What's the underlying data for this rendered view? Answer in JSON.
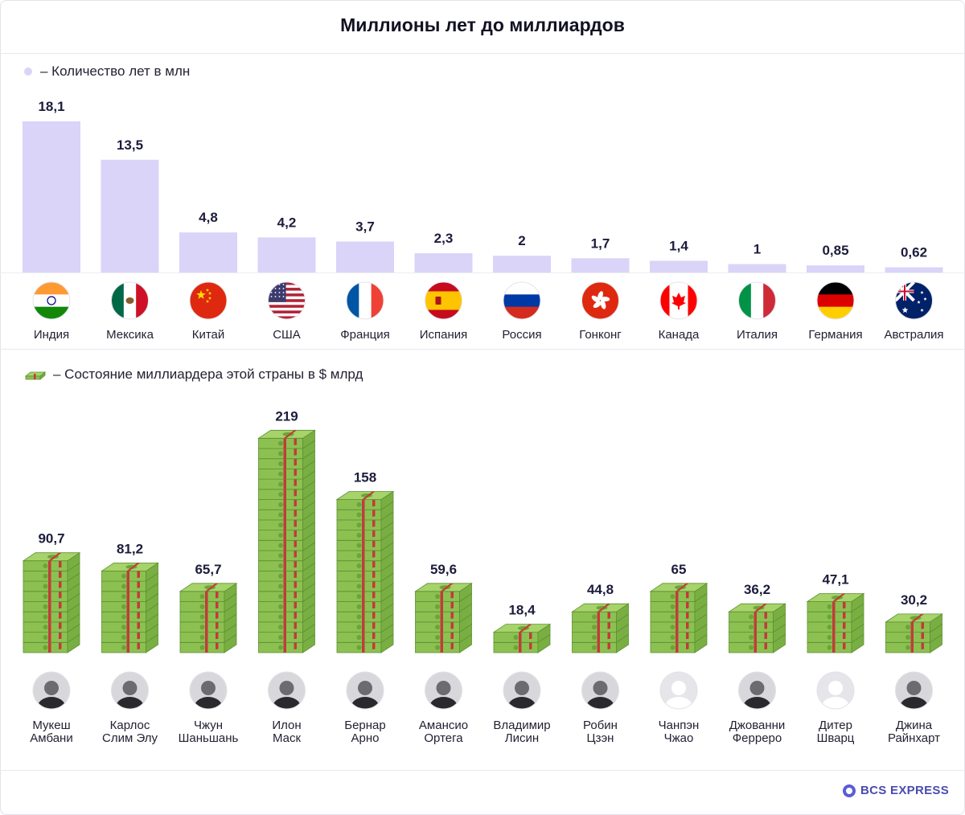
{
  "title": "Миллионы лет до миллиардов",
  "legend_years": "– Количество лет в млн",
  "legend_wealth": "– Состояние миллиардера этой страны в $ млрд",
  "footer_brand": "BCS EXPRESS",
  "colors": {
    "bar": "#d9d4f8",
    "money": "#8cc152",
    "money_dark": "#5d8f33",
    "band": "#c23b3b"
  },
  "chart_data": [
    {
      "type": "bar",
      "title": "Количество лет в млн",
      "categories": [
        "Индия",
        "Мексика",
        "Китай",
        "США",
        "Франция",
        "Испания",
        "Россия",
        "Гонконг",
        "Канада",
        "Италия",
        "Германия",
        "Австралия"
      ],
      "values": [
        18.1,
        13.5,
        4.8,
        4.2,
        3.7,
        2.3,
        2,
        1.7,
        1.4,
        1,
        0.85,
        0.62
      ],
      "value_labels": [
        "18,1",
        "13,5",
        "4,8",
        "4,2",
        "3,7",
        "2,3",
        "2",
        "1,7",
        "1,4",
        "1",
        "0,85",
        "0,62"
      ],
      "ylim": [
        0,
        18.1
      ]
    },
    {
      "type": "bar",
      "title": "Состояние миллиардера этой страны в $ млрд",
      "categories": [
        "Мукеш Амбани",
        "Карлос Слим Элу",
        "Чжун Шаньшань",
        "Илон Маск",
        "Бернар Арно",
        "Амансио Ортега",
        "Владимир Лисин",
        "Робин Цзэн",
        "Чанпэн Чжао",
        "Джованни Ферреро",
        "Дитер Шварц",
        "Джина Райнхарт"
      ],
      "name_lines": [
        [
          "Мукеш",
          "Амбани"
        ],
        [
          "Карлос",
          "Слим Элу"
        ],
        [
          "Чжун",
          "Шаньшань"
        ],
        [
          "Илон",
          "Маск"
        ],
        [
          "Бернар",
          "Арно"
        ],
        [
          "Амансио",
          "Ортега"
        ],
        [
          "Владимир",
          "Лисин"
        ],
        [
          "Робин",
          "Цзэн"
        ],
        [
          "Чанпэн",
          "Чжао"
        ],
        [
          "Джованни",
          "Ферреро"
        ],
        [
          "Дитер",
          "Шварц"
        ],
        [
          "Джина",
          "Райнхарт"
        ]
      ],
      "values": [
        90.7,
        81.2,
        65.7,
        219,
        158,
        59.6,
        18.4,
        44.8,
        65,
        36.2,
        47.1,
        30.2
      ],
      "value_labels": [
        "90,7",
        "81,2",
        "65,7",
        "219",
        "158",
        "59,6",
        "18,4",
        "44,8",
        "65",
        "36,2",
        "47,1",
        "30,2"
      ],
      "ylim": [
        0,
        219
      ]
    }
  ],
  "flags": [
    "india-flag",
    "mexico-flag",
    "china-flag",
    "usa-flag",
    "france-flag",
    "spain-flag",
    "russia-flag",
    "hongkong-flag",
    "canada-flag",
    "italy-flag",
    "germany-flag",
    "australia-flag"
  ]
}
